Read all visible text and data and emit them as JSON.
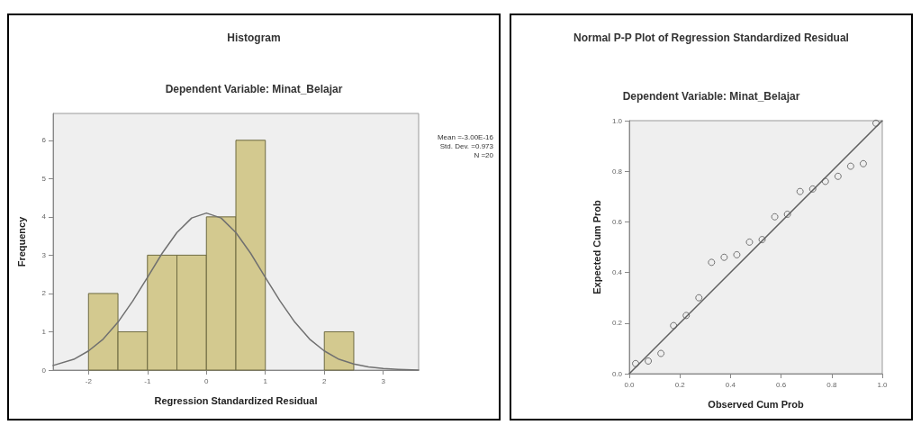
{
  "chart_data": [
    {
      "type": "histogram",
      "title": "Histogram",
      "subtitle": "Dependent Variable: Minat_Belajar",
      "xlabel": "Regression Standardized Residual",
      "ylabel": "Frequency",
      "bins": [
        -2,
        -1.5,
        -1,
        -0.5,
        0,
        0.5,
        1,
        1.5,
        2,
        2.5
      ],
      "series": [
        {
          "color": "#d3c98f",
          "values": [
            2,
            1,
            3,
            3,
            4,
            6,
            0,
            0,
            1
          ]
        },
        {
          "type": "line",
          "color": "#707070",
          "x": [
            -2.6,
            -2.25,
            -2,
            -1.75,
            -1.5,
            -1.25,
            -1,
            -0.75,
            -0.5,
            -0.25,
            0,
            0.25,
            0.5,
            0.75,
            1,
            1.25,
            1.5,
            1.75,
            2,
            2.25,
            2.5,
            2.75,
            3,
            3.25,
            3.6
          ],
          "values": [
            0.12,
            0.28,
            0.5,
            0.81,
            1.25,
            1.8,
            2.42,
            3.05,
            3.59,
            3.97,
            4.1,
            3.97,
            3.59,
            3.05,
            2.42,
            1.8,
            1.25,
            0.81,
            0.5,
            0.28,
            0.16,
            0.08,
            0.04,
            0.02,
            0
          ]
        }
      ],
      "xlim": [
        -2.6,
        3.6
      ],
      "xticks": [
        -2,
        -1,
        0,
        1,
        2,
        3
      ],
      "ylim": [
        0,
        6.7
      ],
      "yticks": [
        0,
        1,
        2,
        3,
        4,
        5,
        6
      ],
      "annotations": [
        "Mean =-3.00E-16",
        "Std. Dev. =0.973",
        "N =20"
      ]
    },
    {
      "type": "scatter",
      "title": "Normal P-P Plot of Regression Standardized Residual",
      "subtitle": "Dependent Variable: Minat_Belajar",
      "xlabel": "Observed Cum Prob",
      "ylabel": "Expected Cum Prob",
      "series": [
        {
          "marker": "circle",
          "color": "#555555",
          "x": [
            0.025,
            0.075,
            0.125,
            0.175,
            0.225,
            0.275,
            0.325,
            0.375,
            0.425,
            0.475,
            0.525,
            0.575,
            0.625,
            0.675,
            0.725,
            0.775,
            0.825,
            0.875,
            0.925,
            0.975
          ],
          "values": [
            0.04,
            0.05,
            0.08,
            0.19,
            0.23,
            0.3,
            0.44,
            0.46,
            0.47,
            0.52,
            0.53,
            0.62,
            0.63,
            0.72,
            0.73,
            0.76,
            0.78,
            0.82,
            0.83,
            0.99
          ]
        },
        {
          "type": "line",
          "marker": "none",
          "color": "#606060",
          "x": [
            0,
            1
          ],
          "values": [
            0,
            1
          ]
        }
      ],
      "xlim": [
        0,
        1
      ],
      "xticks": [
        {
          "value": 0,
          "label": "0.0"
        },
        {
          "value": 0.2,
          "label": "0.2"
        },
        {
          "value": 0.4,
          "label": "0.4"
        },
        {
          "value": 0.6,
          "label": "0.6"
        },
        {
          "value": 0.8,
          "label": "0.8"
        },
        {
          "value": 1,
          "label": "1.0"
        }
      ],
      "ylim": [
        0,
        1
      ],
      "yticks": [
        {
          "value": 0,
          "label": "0.0"
        },
        {
          "value": 0.2,
          "label": "0.2"
        },
        {
          "value": 0.4,
          "label": "0.4"
        },
        {
          "value": 0.6,
          "label": "0.6"
        },
        {
          "value": 0.8,
          "label": "0.8"
        },
        {
          "value": 1,
          "label": "1.0"
        }
      ]
    }
  ]
}
